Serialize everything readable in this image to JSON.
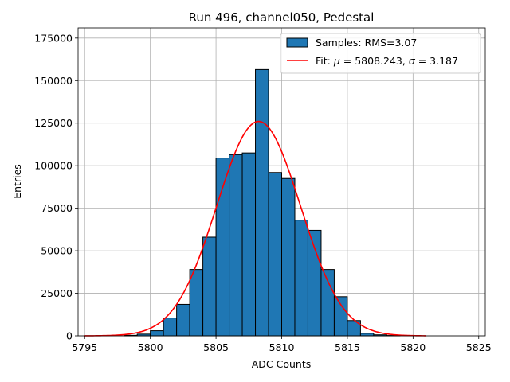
{
  "chart_data": {
    "type": "histogram",
    "title": "Run 496, channel050, Pedestal",
    "xlabel": "ADC Counts",
    "ylabel": "Entries",
    "xlim": [
      5794.5,
      5825.5
    ],
    "ylim": [
      0,
      181000
    ],
    "xticks": [
      5795,
      5800,
      5805,
      5810,
      5815,
      5820,
      5825
    ],
    "yticks": [
      0,
      25000,
      50000,
      75000,
      100000,
      125000,
      150000,
      175000
    ],
    "grid": true,
    "legend_position": "top-right",
    "bar_color": "#1f77b4",
    "fit_color": "#ff0000",
    "bins": [
      {
        "x0": 5796,
        "x1": 5797,
        "count": 0
      },
      {
        "x0": 5797,
        "x1": 5798,
        "count": 0
      },
      {
        "x0": 5798,
        "x1": 5799,
        "count": 300
      },
      {
        "x0": 5799,
        "x1": 5800,
        "count": 1000
      },
      {
        "x0": 5800,
        "x1": 5801,
        "count": 3000
      },
      {
        "x0": 5801,
        "x1": 5802,
        "count": 10500
      },
      {
        "x0": 5802,
        "x1": 5803,
        "count": 18500
      },
      {
        "x0": 5803,
        "x1": 5804,
        "count": 39000
      },
      {
        "x0": 5804,
        "x1": 5805,
        "count": 58000
      },
      {
        "x0": 5805,
        "x1": 5806,
        "count": 104500
      },
      {
        "x0": 5806,
        "x1": 5807,
        "count": 106500
      },
      {
        "x0": 5807,
        "x1": 5808,
        "count": 107500
      },
      {
        "x0": 5808,
        "x1": 5809,
        "count": 156500
      },
      {
        "x0": 5809,
        "x1": 5810,
        "count": 96000
      },
      {
        "x0": 5810,
        "x1": 5811,
        "count": 92500
      },
      {
        "x0": 5811,
        "x1": 5812,
        "count": 68000
      },
      {
        "x0": 5812,
        "x1": 5813,
        "count": 62000
      },
      {
        "x0": 5813,
        "x1": 5814,
        "count": 39000
      },
      {
        "x0": 5814,
        "x1": 5815,
        "count": 23000
      },
      {
        "x0": 5815,
        "x1": 5816,
        "count": 9000
      },
      {
        "x0": 5816,
        "x1": 5817,
        "count": 1500
      },
      {
        "x0": 5817,
        "x1": 5818,
        "count": 600
      },
      {
        "x0": 5818,
        "x1": 5819,
        "count": 200
      },
      {
        "x0": 5819,
        "x1": 5820,
        "count": 0
      },
      {
        "x0": 5820,
        "x1": 5821,
        "count": 0
      },
      {
        "x0": 5821,
        "x1": 5822,
        "count": 0
      },
      {
        "x0": 5822,
        "x1": 5823,
        "count": 0
      },
      {
        "x0": 5823,
        "x1": 5824,
        "count": 0
      }
    ],
    "fit": {
      "type": "gaussian",
      "mu": 5808.243,
      "sigma": 3.187,
      "amplitude": 126000,
      "x_range": [
        5795,
        5821
      ]
    },
    "legend": [
      {
        "label": "Samples: RMS=3.07",
        "kind": "patch"
      },
      {
        "label_prefix": "Fit: ",
        "label_mu": "μ",
        "label_mid": " = 5808.243, ",
        "label_sigma": "σ",
        "label_suffix": " = 3.187",
        "kind": "line"
      }
    ]
  }
}
